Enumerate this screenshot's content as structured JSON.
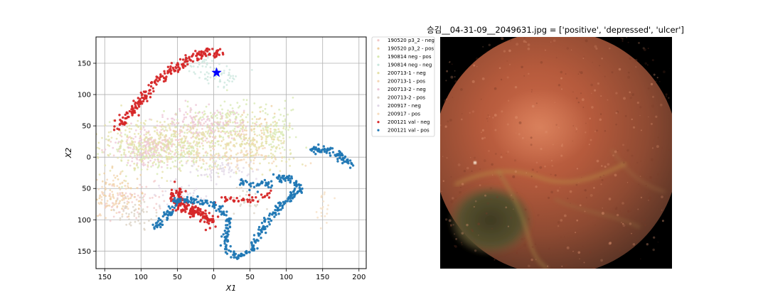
{
  "chart_data": [
    {
      "type": "scatter",
      "title": "",
      "xlabel": "X1",
      "ylabel": "X2",
      "xlim": [
        162,
        -210
      ],
      "ylim": [
        -178,
        192
      ],
      "grid": true,
      "legend_placement": "outside-right",
      "xticks": [
        150,
        100,
        50,
        0,
        -50,
        -100,
        -150,
        -200
      ],
      "xtick_labels": [
        "150",
        "100",
        "50",
        "0",
        "50",
        "100",
        "150",
        "200"
      ],
      "yticks": [
        150,
        100,
        50,
        0,
        -50,
        -100,
        -150
      ],
      "ytick_labels": [
        "150",
        "100",
        "50",
        "0",
        "50",
        "100",
        "150"
      ],
      "marker": {
        "type": "star",
        "x": -4,
        "y": 135,
        "color": "#0000ff"
      },
      "series": [
        {
          "name": "190520 p3_2 - neg",
          "color": "#f2c8c8",
          "clusters": [
            [
              80,
              20,
              26,
              14,
              150
            ],
            [
              10,
              40,
              30,
              12,
              80
            ],
            [
              110,
              -70,
              25,
              15,
              70
            ]
          ]
        },
        {
          "name": "190520 p3_2 - pos",
          "color": "#eecf9f",
          "clusters": [
            [
              130,
              -60,
              18,
              18,
              70
            ],
            [
              -60,
              50,
              20,
              14,
              60
            ]
          ]
        },
        {
          "name": "190814 neg - pos",
          "color": "#d7e8b0",
          "clusters": [
            [
              60,
              10,
              45,
              18,
              220
            ],
            [
              -20,
              60,
              30,
              16,
              120
            ],
            [
              -90,
              40,
              14,
              22,
              70
            ]
          ]
        },
        {
          "name": "190814 neg - neg",
          "color": "#c9e6dc",
          "clusters": [
            [
              20,
              150,
              12,
              10,
              40
            ],
            [
              -10,
              125,
              15,
              10,
              40
            ]
          ]
        },
        {
          "name": "200713-1 - neg",
          "color": "#e4e0a6",
          "clusters": [
            [
              90,
              20,
              40,
              20,
              240
            ],
            [
              0,
              35,
              40,
              15,
              150
            ],
            [
              -60,
              20,
              30,
              18,
              120
            ]
          ]
        },
        {
          "name": "200713-1 - pos",
          "color": "#f4d6b4",
          "clusters": [
            [
              -30,
              0,
              35,
              10,
              110
            ],
            [
              140,
              -60,
              15,
              18,
              60
            ]
          ]
        },
        {
          "name": "200713-2 - neg",
          "color": "#ecc4d6",
          "clusters": [
            [
              20,
              55,
              35,
              12,
              110
            ],
            [
              100,
              10,
              20,
              12,
              70
            ]
          ]
        },
        {
          "name": "200713-2 - pos",
          "color": "#d9d0c2",
          "clusters": [
            [
              110,
              -90,
              15,
              10,
              50
            ],
            [
              -50,
              -70,
              15,
              10,
              30
            ]
          ]
        },
        {
          "name": "200917 - neg",
          "color": "#e0d6e6",
          "clusters": [
            [
              40,
              -60,
              20,
              10,
              50
            ],
            [
              -10,
              -20,
              25,
              8,
              60
            ]
          ]
        },
        {
          "name": "200917 - pos",
          "color": "#f6ddc0",
          "clusters": [
            [
              -150,
              -80,
              6,
              14,
              20
            ]
          ]
        },
        {
          "name": "200121 val - neg",
          "color": "#d62728",
          "curves": [
            {
              "points": [
                [
                  130,
                  48
                ],
                [
                  110,
                  75
                ],
                [
                  85,
                  115
                ],
                [
                  62,
                  135
                ],
                [
                  45,
                  150
                ],
                [
                  25,
                  162
                ],
                [
                  5,
                  168
                ],
                [
                  -15,
                  165
                ]
              ],
              "spread": 4,
              "n": 220
            },
            {
              "points": [
                [
                  45,
                  -50
                ],
                [
                  55,
                  -62
                ],
                [
                  50,
                  -75
                ],
                [
                  35,
                  -82
                ],
                [
                  15,
                  -92
                ],
                [
                  5,
                  -102
                ],
                [
                  0,
                  -105
                ]
              ],
              "spread": 5,
              "n": 180
            },
            {
              "points": [
                [
                  0,
                  -65
                ],
                [
                  -20,
                  -68
                ],
                [
                  -50,
                  -68
                ],
                [
                  -80,
                  -58
                ]
              ],
              "spread": 3,
              "n": 40
            }
          ]
        },
        {
          "name": "200121 val - pos",
          "color": "#1f77b4",
          "curves": [
            {
              "points": [
                [
                  -135,
                  10
                ],
                [
                  -150,
                  12
                ],
                [
                  -165,
                  10
                ],
                [
                  -175,
                  0
                ],
                [
                  -182,
                  -5
                ],
                [
                  -190,
                  -15
                ]
              ],
              "spread": 3,
              "n": 80
            },
            {
              "points": [
                [
                  -35,
                  -35
                ],
                [
                  -55,
                  -50
                ],
                [
                  -85,
                  -35
                ],
                [
                  -105,
                  -32
                ],
                [
                  -120,
                  -50
                ],
                [
                  -95,
                  -75
                ],
                [
                  -80,
                  -95
                ],
                [
                  -70,
                  -110
                ],
                [
                  -60,
                  -125
                ],
                [
                  -55,
                  -140
                ],
                [
                  -50,
                  -150
                ],
                [
                  -35,
                  -158
                ],
                [
                  -20,
                  -150
                ],
                [
                  -15,
                  -130
                ],
                [
                  -20,
                  -110
                ],
                [
                  -20,
                  -95
                ],
                [
                  0,
                  -75
                ],
                [
                  30,
                  -68
                ],
                [
                  50,
                  -70
                ],
                [
                  65,
                  -95
                ],
                [
                  80,
                  -110
                ]
              ],
              "spread": 3,
              "n": 420
            }
          ]
        }
      ]
    },
    {
      "type": "image",
      "title": "승김__04-31-09__2049631.jpg = ['positive', 'depressed', 'ulcer']"
    }
  ]
}
